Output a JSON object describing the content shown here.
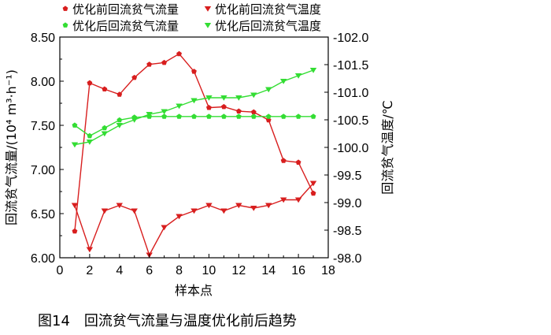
{
  "caption": "图14　回流贫气流量与温度优化前后趋势",
  "chart_data": {
    "type": "line",
    "xlabel": "样本点",
    "ylabel_left": "回流贫气流量/(10⁴ m³·h⁻¹)",
    "ylabel_right": "回流贫气温度/℃",
    "xlim": [
      0,
      18
    ],
    "x_ticks": [
      0,
      2,
      4,
      6,
      8,
      10,
      12,
      14,
      16,
      18
    ],
    "ylim_left": [
      6.0,
      8.5
    ],
    "y_ticks_left": [
      "6.00",
      "6.50",
      "7.00",
      "7.50",
      "8.00",
      "8.50"
    ],
    "ylim_right": [
      -98.0,
      -102.0
    ],
    "y_ticks_right": [
      "-98.0",
      "-98.5",
      "-99.0",
      "-99.5",
      "-100.0",
      "-100.5",
      "-101.0",
      "-101.5",
      "-102.0"
    ],
    "legend_position": "top",
    "grid": false,
    "x": [
      1,
      2,
      3,
      4,
      5,
      6,
      7,
      8,
      9,
      10,
      11,
      12,
      13,
      14,
      15,
      16,
      17
    ],
    "series": [
      {
        "name": "优化前回流贫气流量",
        "axis": "left",
        "marker": "pentagon",
        "color": "#d81e1e",
        "values": [
          6.3,
          7.98,
          7.91,
          7.85,
          8.04,
          8.19,
          8.21,
          8.31,
          8.11,
          7.7,
          7.71,
          7.66,
          7.65,
          7.56,
          7.1,
          7.08,
          6.73
        ]
      },
      {
        "name": "优化前回流贫气温度",
        "axis": "right",
        "marker": "triangle-down",
        "color": "#d81e1e",
        "values": [
          -98.95,
          -98.15,
          -98.85,
          -98.95,
          -98.85,
          -98.05,
          -98.55,
          -98.75,
          -98.85,
          -98.95,
          -98.85,
          -98.95,
          -98.9,
          -98.95,
          -99.05,
          -99.05,
          -99.35
        ]
      },
      {
        "name": "优化后回流贫气流量",
        "axis": "left",
        "marker": "pentagon",
        "color": "#33dd33",
        "values": [
          7.5,
          7.38,
          7.47,
          7.56,
          7.59,
          7.6,
          7.6,
          7.6,
          7.6,
          7.6,
          7.6,
          7.6,
          7.6,
          7.6,
          7.6,
          7.6,
          7.6
        ]
      },
      {
        "name": "优化后回流贫气温度",
        "axis": "right",
        "marker": "triangle-down",
        "color": "#33dd33",
        "values": [
          -100.05,
          -100.1,
          -100.25,
          -100.4,
          -100.5,
          -100.6,
          -100.65,
          -100.75,
          -100.85,
          -100.9,
          -100.9,
          -100.9,
          -100.95,
          -101.05,
          -101.2,
          -101.3,
          -101.4
        ]
      }
    ]
  }
}
